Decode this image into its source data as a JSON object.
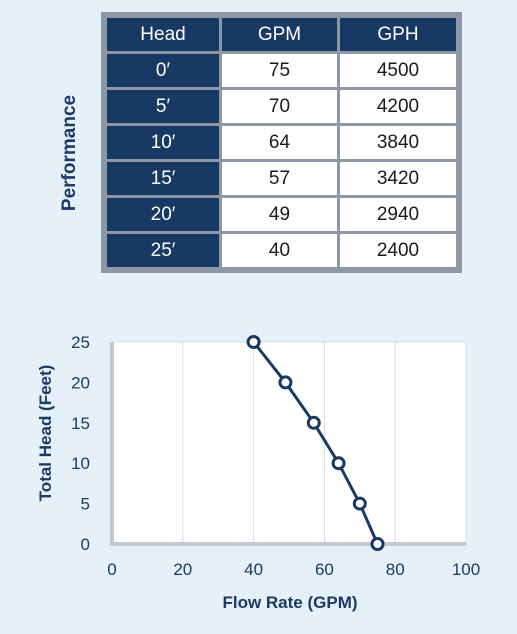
{
  "table": {
    "side_label": "Performance",
    "columns": [
      "Head",
      "GPM",
      "GPH"
    ],
    "rows": [
      [
        "0′",
        "75",
        "4500"
      ],
      [
        "5′",
        "70",
        "4200"
      ],
      [
        "10′",
        "64",
        "3840"
      ],
      [
        "15′",
        "57",
        "3420"
      ],
      [
        "20′",
        "49",
        "2940"
      ],
      [
        "25′",
        "40",
        "2400"
      ]
    ]
  },
  "chart_data": {
    "type": "line",
    "xlabel": "Flow Rate (GPM)",
    "ylabel": "Total Head (Feet)",
    "xlim": [
      0,
      100
    ],
    "ylim": [
      0,
      25
    ],
    "xticks": [
      0,
      20,
      40,
      60,
      80,
      100
    ],
    "yticks": [
      0,
      5,
      10,
      15,
      20,
      25
    ],
    "grid": true,
    "series": [
      {
        "x": [
          75,
          70,
          64,
          57,
          49,
          40
        ],
        "y": [
          0,
          5,
          10,
          15,
          20,
          25
        ]
      }
    ]
  },
  "colors": {
    "background": "#e6f0f8",
    "navy": "#183963",
    "grid": "#d7dbe0",
    "axis": "#c3c9d1",
    "text": "#1b3a66"
  }
}
